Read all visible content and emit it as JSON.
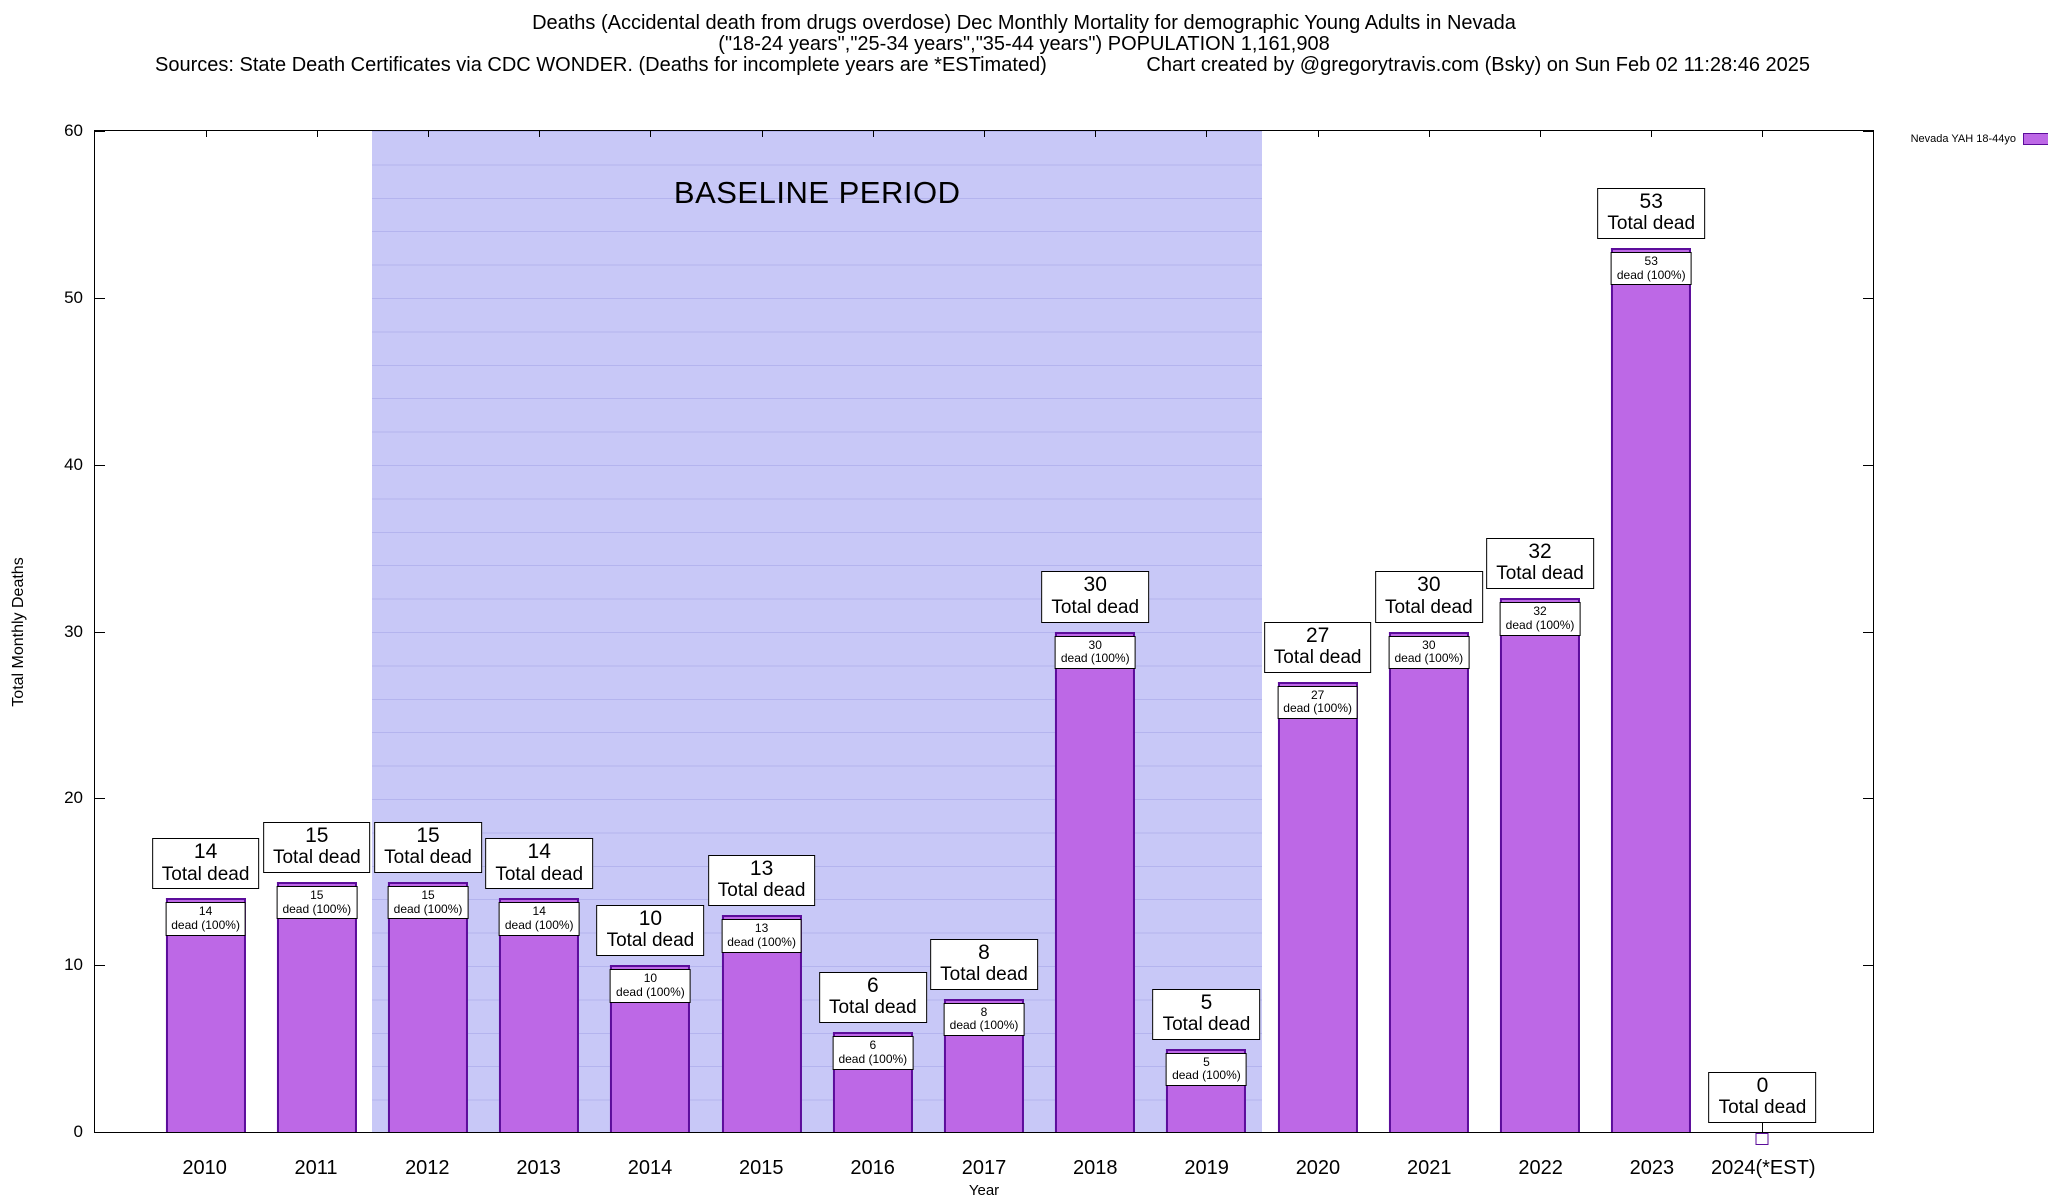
{
  "header": {
    "title_line1": "Deaths (Accidental death from drugs overdose) Dec Monthly Mortality for demographic Young Adults in Nevada",
    "title_line2": "(\"18-24 years\",\"25-34 years\",\"35-44 years\") POPULATION 1,161,908",
    "sources": "Sources: State Death Certificates via CDC WONDER. (Deaths for incomplete years are *ESTimated)",
    "credit": "Chart created by @gregorytravis.com (Bsky) on Sun Feb 02 11:28:46 2025"
  },
  "chart_data": {
    "type": "bar",
    "title": "Deaths (Accidental death from drugs overdose) Dec Monthly Mortality for demographic Young Adults in Nevada",
    "categories": [
      "2010",
      "2011",
      "2012",
      "2013",
      "2014",
      "2015",
      "2016",
      "2017",
      "2018",
      "2019",
      "2020",
      "2021",
      "2022",
      "2023",
      "2024(*EST)"
    ],
    "values": [
      14,
      15,
      15,
      14,
      10,
      13,
      6,
      8,
      30,
      5,
      27,
      30,
      32,
      53,
      0
    ],
    "xlabel": "Year",
    "ylabel": "Total Monthly Deaths",
    "ylim": [
      0,
      60
    ],
    "yticks": [
      0,
      10,
      20,
      30,
      40,
      50,
      60
    ],
    "grid": false,
    "legend": {
      "label": "Nevada YAH 18-44yo",
      "position": "top-right"
    },
    "baseline": {
      "label": "BASELINE PERIOD",
      "from": "2012",
      "to": "2019"
    },
    "annotations": {
      "total_label": "Total dead",
      "cap_label": "dead (100%)"
    },
    "colors": {
      "bar_fill": "#bd68e6",
      "bar_border": "#5c0d9b",
      "baseline_bg": "#c8c8f7",
      "baseline_stripe": "#b4b4ee"
    }
  }
}
